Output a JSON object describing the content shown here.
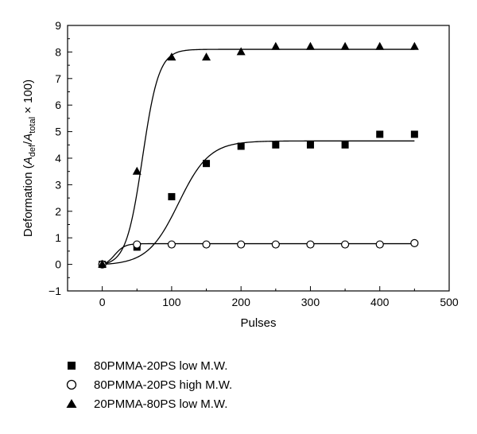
{
  "chart_data": {
    "type": "scatter",
    "title": "",
    "xlabel": "Pulses",
    "ylabel_parts": {
      "prefix": "Deformation (",
      "num": "A",
      "num_sub": "def",
      "slash": "/",
      "den": "A",
      "den_sub": "total",
      "suffix": " × 100)"
    },
    "xlim": [
      -50,
      500
    ],
    "ylim": [
      -1,
      9
    ],
    "xticks": [
      0,
      100,
      200,
      300,
      400,
      500
    ],
    "yticks": [
      -1,
      0,
      1,
      2,
      3,
      4,
      5,
      6,
      7,
      8,
      9
    ],
    "grid": false,
    "legend_position": "below",
    "series": [
      {
        "name": "80PMMA-20PS low M.W.",
        "marker": "square-filled",
        "x": [
          0,
          50,
          100,
          150,
          200,
          250,
          300,
          350,
          400,
          450
        ],
        "y": [
          0,
          0.65,
          2.55,
          3.8,
          4.45,
          4.5,
          4.5,
          4.5,
          4.9,
          4.9
        ],
        "fit": {
          "A": 4.65,
          "x0": 110,
          "k": 0.045
        }
      },
      {
        "name": "80PMMA-20PS high M.W.",
        "marker": "circle-open",
        "x": [
          0,
          50,
          100,
          150,
          200,
          250,
          300,
          350,
          400,
          450
        ],
        "y": [
          0,
          0.75,
          0.75,
          0.75,
          0.75,
          0.75,
          0.75,
          0.75,
          0.75,
          0.8
        ],
        "fit": {
          "A": 0.78,
          "x0": 18,
          "k": 0.14
        }
      },
      {
        "name": "20PMMA-80PS low M.W.",
        "marker": "triangle-filled",
        "x": [
          0,
          50,
          100,
          150,
          200,
          250,
          300,
          350,
          400,
          450
        ],
        "y": [
          0,
          3.5,
          7.8,
          7.8,
          8.0,
          8.2,
          8.2,
          8.2,
          8.2,
          8.2
        ],
        "fit": {
          "A": 8.1,
          "x0": 58,
          "k": 0.085
        }
      }
    ]
  }
}
